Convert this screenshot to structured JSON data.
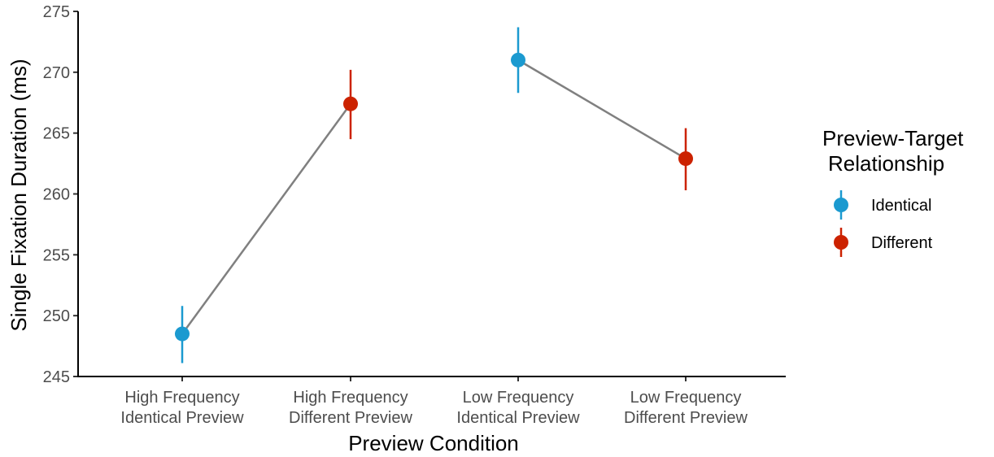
{
  "chart_data": {
    "type": "scatter",
    "title": "",
    "xlabel": "Preview Condition",
    "ylabel": "Single Fixation Duration (ms)",
    "ylim": [
      245,
      275
    ],
    "yticks": [
      245,
      250,
      255,
      260,
      265,
      270,
      275
    ],
    "grid": false,
    "categories": [
      [
        "High Frequency",
        "Identical Preview"
      ],
      [
        "High Frequency",
        "Different Preview"
      ],
      [
        "Low Frequency",
        "Identical Preview"
      ],
      [
        "Low Frequency",
        "Different Preview"
      ]
    ],
    "points": [
      {
        "category": 0,
        "group": "Identical",
        "y": 248.5,
        "lower": 246.1,
        "upper": 250.8
      },
      {
        "category": 1,
        "group": "Different",
        "y": 267.4,
        "lower": 264.5,
        "upper": 270.2
      },
      {
        "category": 2,
        "group": "Identical",
        "y": 271.0,
        "lower": 268.3,
        "upper": 273.7
      },
      {
        "category": 3,
        "group": "Different",
        "y": 262.9,
        "lower": 260.3,
        "upper": 265.4
      }
    ],
    "lines": [
      [
        0,
        1
      ],
      [
        2,
        3
      ]
    ],
    "line_color": "#808080",
    "legend": {
      "title": [
        "Preview-Target",
        "Relationship"
      ],
      "position": "right",
      "entries": [
        {
          "label": "Identical",
          "color": "#1b9ad0"
        },
        {
          "label": "Different",
          "color": "#cc2200"
        }
      ]
    }
  }
}
